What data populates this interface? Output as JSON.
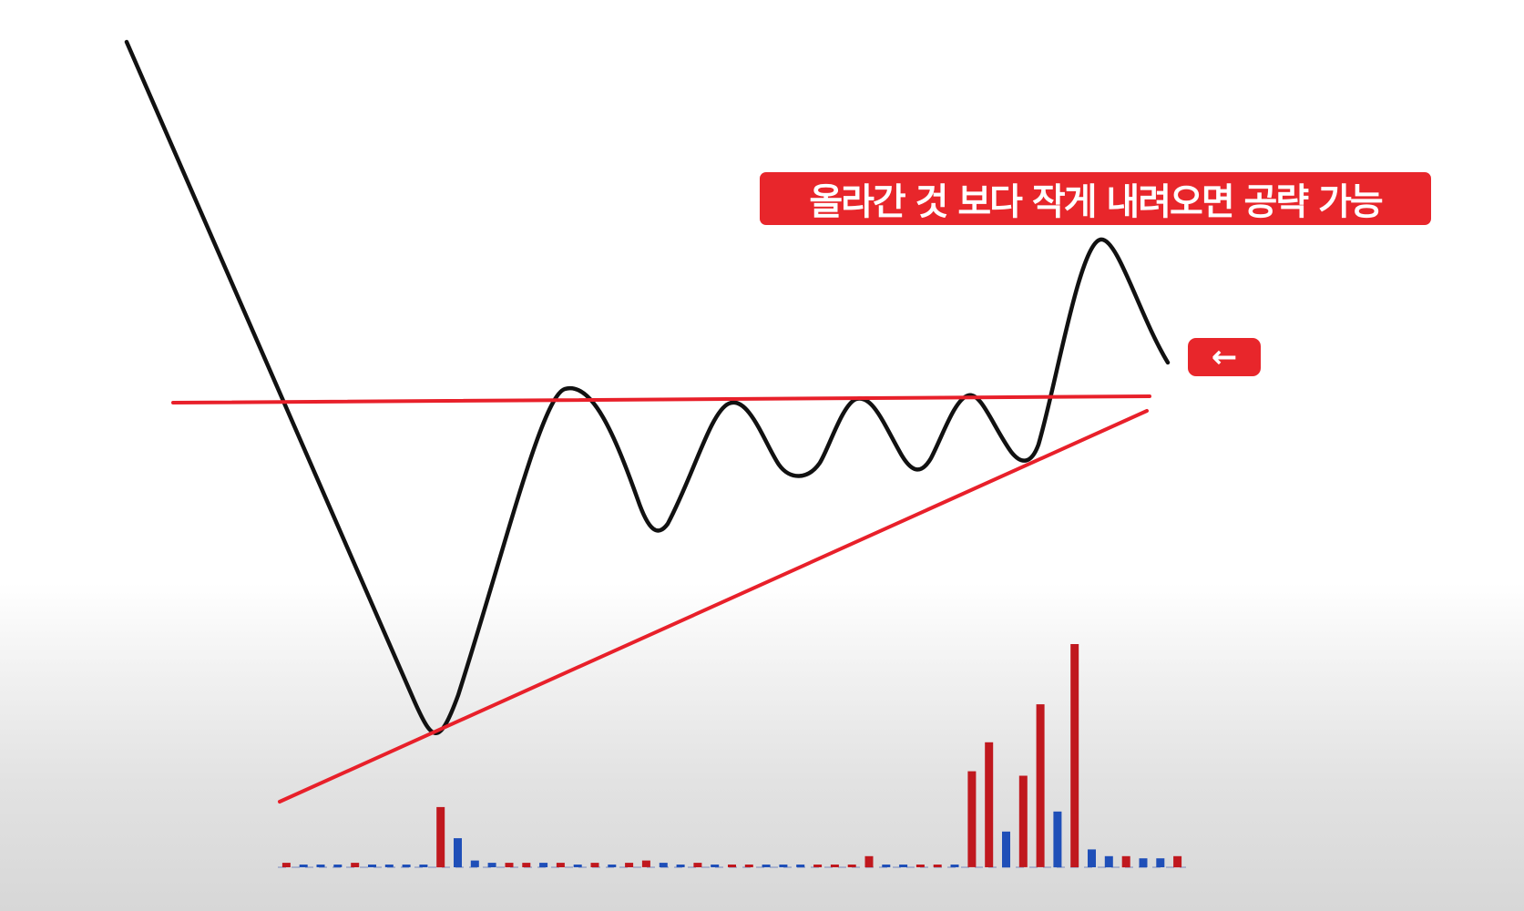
{
  "annotation": {
    "caption": "올라간 것 보다 작게 내려오면 공략 가능",
    "arrow": "←"
  },
  "colors": {
    "price_line": "#111111",
    "trendlines": "#e8202a",
    "volume_up": "#c0181e",
    "volume_down": "#1f4fb8",
    "badge": "#e8262b"
  },
  "volume_bars": [
    {
      "color": "red",
      "level": 0.02
    },
    {
      "color": "blue",
      "level": 0.01
    },
    {
      "color": "blue",
      "level": 0.01
    },
    {
      "color": "blue",
      "level": 0.01
    },
    {
      "color": "red",
      "level": 0.02
    },
    {
      "color": "blue",
      "level": 0.01
    },
    {
      "color": "blue",
      "level": 0.01
    },
    {
      "color": "blue",
      "level": 0.01
    },
    {
      "color": "blue",
      "level": 0.01
    },
    {
      "color": "red",
      "level": 0.27
    },
    {
      "color": "blue",
      "level": 0.13
    },
    {
      "color": "blue",
      "level": 0.03
    },
    {
      "color": "blue",
      "level": 0.02
    },
    {
      "color": "red",
      "level": 0.02
    },
    {
      "color": "red",
      "level": 0.02
    },
    {
      "color": "blue",
      "level": 0.02
    },
    {
      "color": "red",
      "level": 0.02
    },
    {
      "color": "blue",
      "level": 0.01
    },
    {
      "color": "red",
      "level": 0.02
    },
    {
      "color": "blue",
      "level": 0.01
    },
    {
      "color": "red",
      "level": 0.02
    },
    {
      "color": "red",
      "level": 0.03
    },
    {
      "color": "blue",
      "level": 0.02
    },
    {
      "color": "blue",
      "level": 0.01
    },
    {
      "color": "red",
      "level": 0.02
    },
    {
      "color": "blue",
      "level": 0.01
    },
    {
      "color": "red",
      "level": 0.01
    },
    {
      "color": "red",
      "level": 0.01
    },
    {
      "color": "blue",
      "level": 0.01
    },
    {
      "color": "blue",
      "level": 0.01
    },
    {
      "color": "blue",
      "level": 0.01
    },
    {
      "color": "red",
      "level": 0.01
    },
    {
      "color": "red",
      "level": 0.01
    },
    {
      "color": "red",
      "level": 0.01
    },
    {
      "color": "red",
      "level": 0.05
    },
    {
      "color": "blue",
      "level": 0.01
    },
    {
      "color": "blue",
      "level": 0.01
    },
    {
      "color": "red",
      "level": 0.01
    },
    {
      "color": "red",
      "level": 0.01
    },
    {
      "color": "blue",
      "level": 0.01
    },
    {
      "color": "red",
      "level": 0.43
    },
    {
      "color": "red",
      "level": 0.56
    },
    {
      "color": "blue",
      "level": 0.16
    },
    {
      "color": "red",
      "level": 0.41
    },
    {
      "color": "red",
      "level": 0.73
    },
    {
      "color": "blue",
      "level": 0.25
    },
    {
      "color": "red",
      "level": 1.0
    },
    {
      "color": "blue",
      "level": 0.08
    },
    {
      "color": "blue",
      "level": 0.05
    },
    {
      "color": "red",
      "level": 0.05
    },
    {
      "color": "blue",
      "level": 0.04
    },
    {
      "color": "blue",
      "level": 0.04
    },
    {
      "color": "red",
      "level": 0.05
    }
  ]
}
